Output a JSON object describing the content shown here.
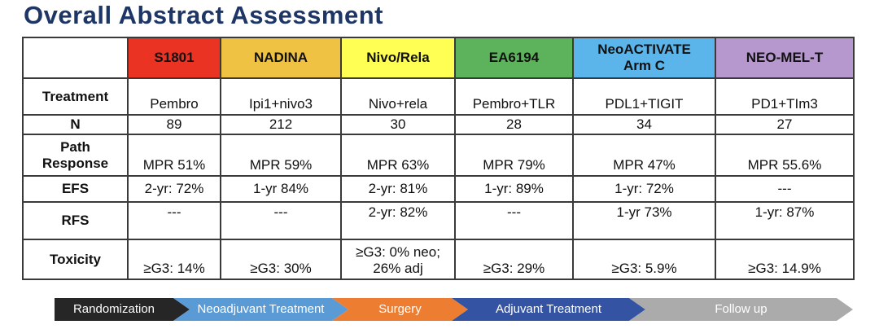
{
  "title": "Overall Abstract Assessment",
  "table": {
    "columns": [
      {
        "label": "S1801",
        "color": "#ea3323"
      },
      {
        "label": "NADINA",
        "color": "#efc243"
      },
      {
        "label": "Nivo/Rela",
        "color": "#ffff54"
      },
      {
        "label": "EA6194",
        "color": "#5cb35c"
      },
      {
        "label": "NeoACTIVATE\nArm C",
        "color": "#5bb5ea"
      },
      {
        "label": "NEO-MEL-T",
        "color": "#b698cf"
      }
    ],
    "rows": [
      {
        "label": "Treatment",
        "values": [
          "Pembro",
          "Ipi1+nivo3",
          "Nivo+rela",
          "Pembro+TLR",
          "PDL1+TIGIT",
          "PD1+TIm3"
        ]
      },
      {
        "label": "N",
        "values": [
          "89",
          "212",
          "30",
          "28",
          "34",
          "27"
        ]
      },
      {
        "label": "Path\nResponse",
        "values": [
          "MPR 51%",
          "MPR 59%",
          "MPR 63%",
          "MPR 79%",
          "MPR 47%",
          "MPR 55.6%"
        ]
      },
      {
        "label": "EFS",
        "values": [
          "2-yr: 72%",
          "1-yr 84%",
          "2-yr: 81%",
          "1-yr: 89%",
          "1-yr: 72%",
          "---"
        ]
      },
      {
        "label": "RFS",
        "values": [
          "---",
          "---",
          "2-yr: 82%",
          "---",
          "1-yr  73%",
          "1-yr: 87%"
        ]
      },
      {
        "label": "Toxicity",
        "values": [
          "≥G3: 14%",
          "≥G3: 30%",
          "≥G3: 0% neo;\n26% adj",
          "≥G3: 29%",
          "≥G3: 5.9%",
          "≥G3: 14.9%"
        ]
      }
    ]
  },
  "flow": {
    "steps": [
      {
        "label": "Randomization",
        "color": "#262626"
      },
      {
        "label": "Neoadjuvant Treatment",
        "color": "#5b9bd5"
      },
      {
        "label": "Surgery",
        "color": "#ed7d31"
      },
      {
        "label": "Adjuvant Treatment",
        "color": "#3454a3"
      },
      {
        "label": "Follow up",
        "color": "#ababab"
      }
    ]
  }
}
